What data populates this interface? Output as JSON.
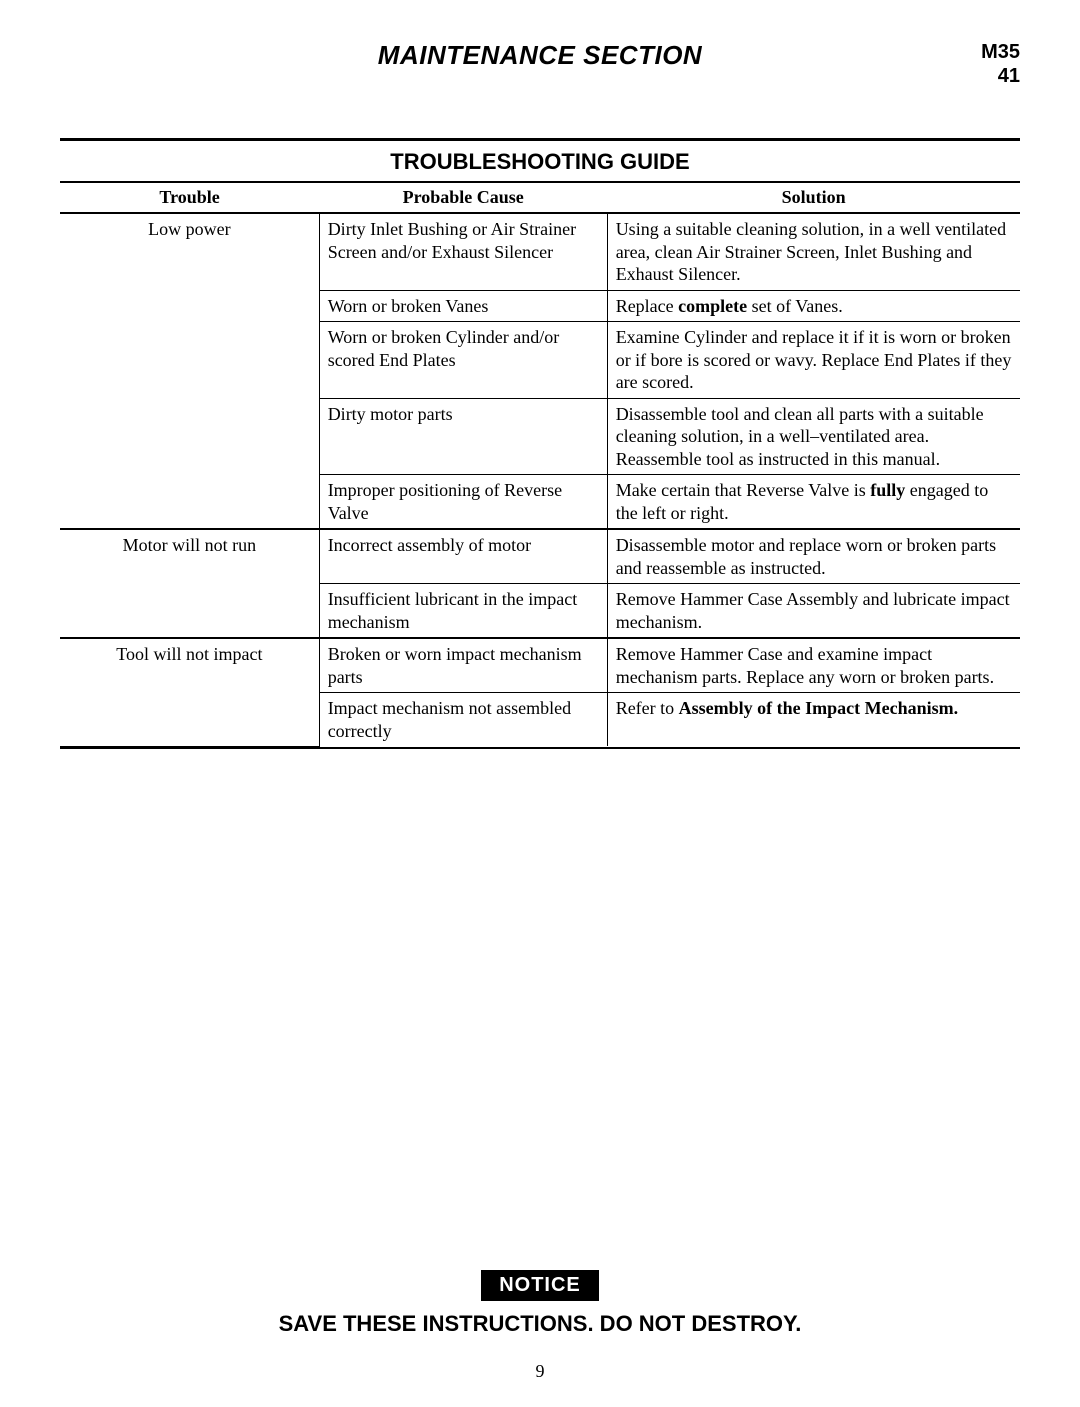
{
  "header": {
    "section_title": "MAINTENANCE SECTION",
    "ref_line1": "M35",
    "ref_line2": "41"
  },
  "table": {
    "title": "TROUBLESHOOTING GUIDE",
    "columns": [
      "Trouble",
      "Probable Cause",
      "Solution"
    ],
    "groups": [
      {
        "trouble": "Low power",
        "rows": [
          {
            "cause": "Dirty Inlet Bushing or Air Strainer Screen and/or Exhaust Silencer",
            "solution": "Using a suitable cleaning solution, in a well ventilated area, clean Air Strainer Screen, Inlet Bushing and Exhaust Silencer."
          },
          {
            "cause": "Worn or broken Vanes",
            "solution_pre": "Replace ",
            "solution_bold": "complete",
            "solution_post": " set of Vanes."
          },
          {
            "cause": "Worn or broken Cylinder and/or scored End Plates",
            "solution": "Examine Cylinder and replace it if it is worn or broken or if bore is scored or wavy.  Replace End Plates if they are scored."
          },
          {
            "cause": "Dirty motor parts",
            "solution": "Disassemble tool and clean all parts with a suitable cleaning solution, in a well–ventilated area. Reassemble tool as instructed in this manual."
          },
          {
            "cause": "Improper positioning of Reverse Valve",
            "solution_pre": "Make certain that Reverse Valve is ",
            "solution_bold": "fully",
            "solution_post": " engaged to the left or right."
          }
        ]
      },
      {
        "trouble": "Motor will not run",
        "rows": [
          {
            "cause": "Incorrect assembly of motor",
            "solution": "Disassemble motor and replace worn or broken parts and reassemble as instructed."
          },
          {
            "cause": "Insufficient lubricant in the impact mechanism",
            "solution": "Remove Hammer Case Assembly and lubricate impact mechanism."
          }
        ]
      },
      {
        "trouble": "Tool will not impact",
        "rows": [
          {
            "cause": "Broken or worn impact mechanism parts",
            "solution": "Remove Hammer Case and examine impact mechanism parts. Replace any worn or broken parts."
          },
          {
            "cause": "Impact mechanism not assembled correctly",
            "solution_pre": "Refer to ",
            "solution_bold": "Assembly of the Impact Mechanism.",
            "solution_post": ""
          }
        ]
      }
    ]
  },
  "notice": {
    "badge": "NOTICE",
    "text": "SAVE THESE INSTRUCTIONS.  DO NOT DESTROY."
  },
  "page_number": "9"
}
